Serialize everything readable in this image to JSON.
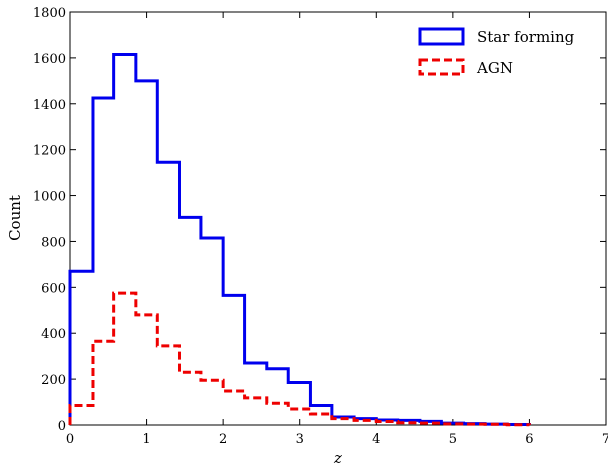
{
  "chart_data": {
    "type": "histogram",
    "xlabel": "z",
    "ylabel": "Count",
    "xlim": [
      0,
      7
    ],
    "ylim": [
      0,
      1800
    ],
    "x_ticks": [
      "0",
      "1",
      "2",
      "3",
      "4",
      "5",
      "6",
      "7"
    ],
    "y_ticks": [
      "0",
      "200",
      "400",
      "600",
      "800",
      "1000",
      "1200",
      "1400",
      "1600",
      "1800"
    ],
    "legend_position": "top-right",
    "bin_edges": [
      0,
      0.3,
      0.57,
      0.86,
      1.14,
      1.43,
      1.71,
      2.0,
      2.28,
      2.57,
      2.85,
      3.14,
      3.42,
      3.71,
      4.0,
      4.28,
      4.57,
      4.85,
      5.14,
      5.42,
      5.71,
      6.0
    ],
    "series": [
      {
        "name": "Star forming",
        "style": "solid",
        "color": "#0000ee",
        "values": [
          670,
          1425,
          1615,
          1500,
          1145,
          905,
          815,
          565,
          270,
          245,
          185,
          85,
          35,
          28,
          22,
          20,
          16,
          8,
          6,
          4,
          2
        ]
      },
      {
        "name": "AGN",
        "style": "dashed",
        "color": "#ee0000",
        "values": [
          85,
          365,
          575,
          480,
          345,
          230,
          195,
          148,
          118,
          95,
          70,
          48,
          28,
          20,
          15,
          10,
          8,
          5,
          4,
          3,
          1
        ]
      }
    ]
  }
}
